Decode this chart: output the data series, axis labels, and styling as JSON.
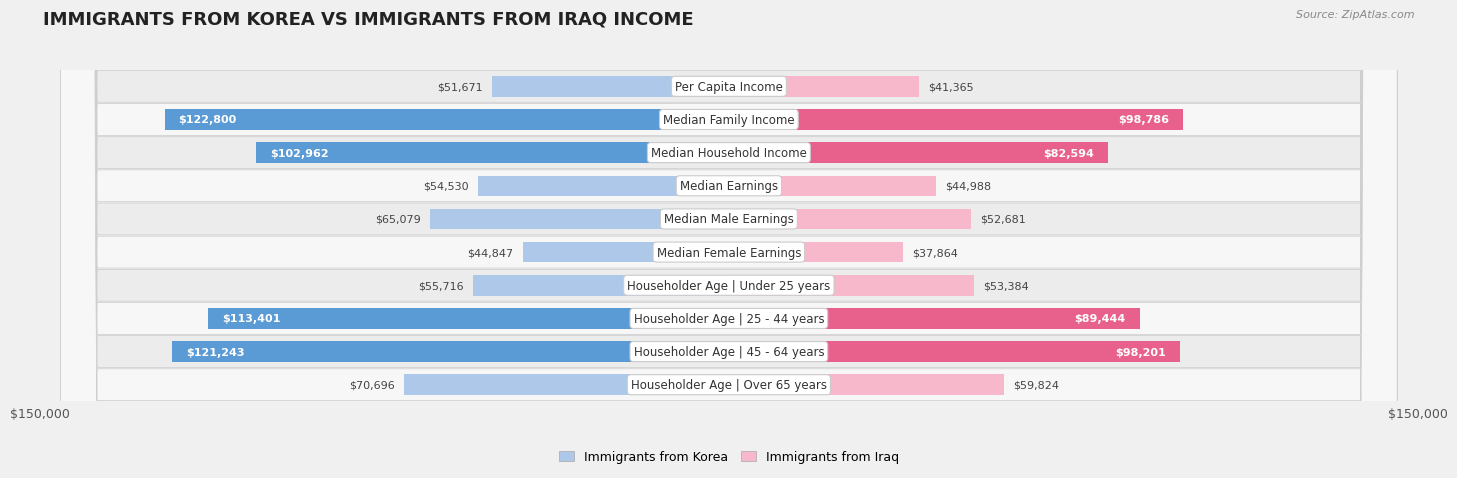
{
  "title": "IMMIGRANTS FROM KOREA VS IMMIGRANTS FROM IRAQ INCOME",
  "source": "Source: ZipAtlas.com",
  "categories": [
    "Per Capita Income",
    "Median Family Income",
    "Median Household Income",
    "Median Earnings",
    "Median Male Earnings",
    "Median Female Earnings",
    "Householder Age | Under 25 years",
    "Householder Age | 25 - 44 years",
    "Householder Age | 45 - 64 years",
    "Householder Age | Over 65 years"
  ],
  "korea_values": [
    51671,
    122800,
    102962,
    54530,
    65079,
    44847,
    55716,
    113401,
    121243,
    70696
  ],
  "iraq_values": [
    41365,
    98786,
    82594,
    44988,
    52681,
    37864,
    53384,
    89444,
    98201,
    59824
  ],
  "korea_color_light": "#adc8e8",
  "korea_color_dark": "#5b9bd5",
  "iraq_color_light": "#f7b8cb",
  "iraq_color_dark": "#e8618c",
  "korea_label": "Immigrants from Korea",
  "iraq_label": "Immigrants from Iraq",
  "max_value": 150000,
  "background_color": "#f0f0f0",
  "row_bg_light": "#f8f8f8",
  "row_bg_dark": "#e8e8e8",
  "title_fontsize": 13,
  "label_fontsize": 8.5,
  "value_fontsize": 8,
  "axis_label": "$150,000",
  "korea_threshold": 80000,
  "iraq_threshold": 80000
}
